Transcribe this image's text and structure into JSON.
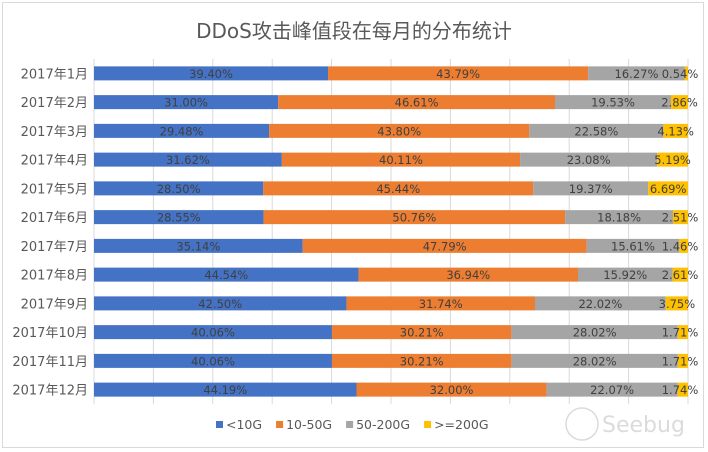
{
  "chart_data": {
    "type": "bar",
    "orientation": "horizontal",
    "stacked": "percent",
    "title": "DDoS攻击峰值段在每月的分布统计",
    "xlabel": "",
    "ylabel": "",
    "xlim": [
      0,
      100
    ],
    "grid": true,
    "legend_position": "bottom",
    "categories": [
      "2017年1月",
      "2017年2月",
      "2017年3月",
      "2017年4月",
      "2017年5月",
      "2017年6月",
      "2017年7月",
      "2017年8月",
      "2017年9月",
      "2017年10月",
      "2017年11月",
      "2017年12月"
    ],
    "series": [
      {
        "name": "<10G",
        "color": "#4472c4",
        "values": [
          39.4,
          31.0,
          29.48,
          31.62,
          28.5,
          28.55,
          35.14,
          44.54,
          42.5,
          40.06,
          40.06,
          44.19
        ]
      },
      {
        "name": "10-50G",
        "color": "#ed7d31",
        "values": [
          43.79,
          46.61,
          43.8,
          40.11,
          45.44,
          50.76,
          47.79,
          36.94,
          31.74,
          30.21,
          30.21,
          32.0
        ]
      },
      {
        "name": "50-200G",
        "color": "#a5a5a5",
        "values": [
          16.27,
          19.53,
          22.58,
          23.08,
          19.37,
          18.18,
          15.61,
          15.92,
          22.02,
          28.02,
          28.02,
          22.07
        ]
      },
      {
        "name": ">=200G",
        "color": "#ffc000",
        "values": [
          0.54,
          2.86,
          4.13,
          5.19,
          6.69,
          2.51,
          1.46,
          2.61,
          3.75,
          1.71,
          1.71,
          1.74
        ]
      }
    ]
  },
  "watermark": "Seebug"
}
